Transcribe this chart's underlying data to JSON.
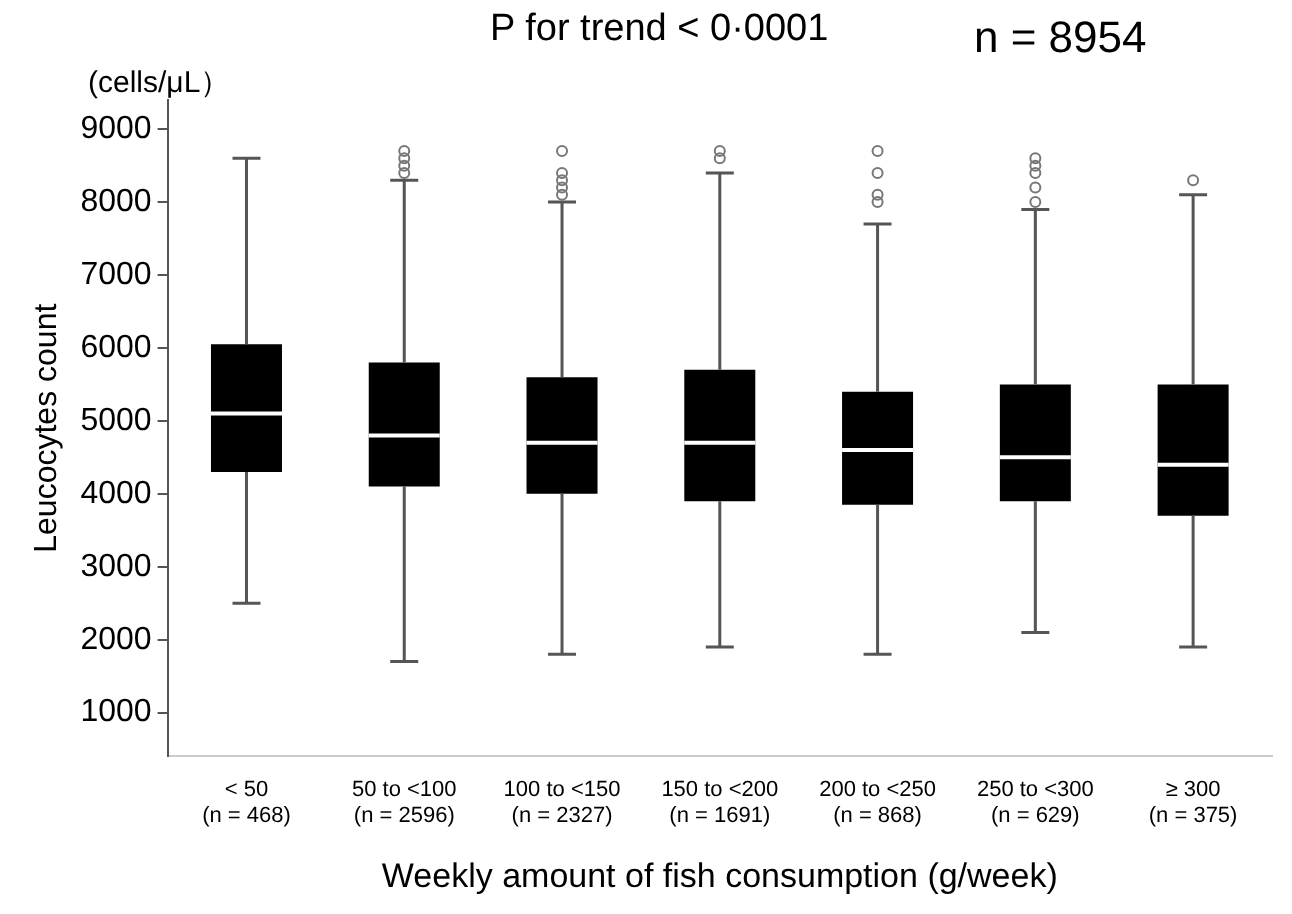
{
  "chart_data": {
    "type": "box",
    "categories": [
      "< 50\n(n = 468)",
      "50 to <100\n(n = 2596)",
      "100 to <150\n(n = 2327)",
      "150 to <200\n(n = 1691)",
      "200 to <250\n(n = 868)",
      "250 to <300\n(n = 629)",
      "≥ 300\n(n = 375)"
    ],
    "boxes": [
      {
        "low": 2500,
        "q1": 4300,
        "median": 5100,
        "q3": 6050,
        "high": 8600
      },
      {
        "low": 1700,
        "q1": 4100,
        "median": 4800,
        "q3": 5800,
        "high": 8300,
        "outliers": [
          8400,
          8500,
          8600,
          8700
        ]
      },
      {
        "low": 1800,
        "q1": 4000,
        "median": 4700,
        "q3": 5600,
        "high": 8000,
        "outliers": [
          8100,
          8200,
          8300,
          8400,
          8700
        ]
      },
      {
        "low": 1900,
        "q1": 3900,
        "median": 4700,
        "q3": 5700,
        "high": 8400,
        "outliers": [
          8600,
          8700
        ]
      },
      {
        "low": 1800,
        "q1": 3850,
        "median": 4600,
        "q3": 5400,
        "high": 7700,
        "outliers": [
          8000,
          8100,
          8400,
          8700
        ]
      },
      {
        "low": 2100,
        "q1": 3900,
        "median": 4500,
        "q3": 5500,
        "high": 7900,
        "outliers": [
          8000,
          8200,
          8400,
          8500,
          8600
        ]
      },
      {
        "low": 1900,
        "q1": 3700,
        "median": 4400,
        "q3": 5500,
        "high": 8100,
        "outliers": [
          8300
        ]
      }
    ],
    "color": "#000000",
    "xlabel": "Weekly amount of fish consumption (g/week)",
    "ylabel": "Leucocytes count",
    "ylim": [
      400,
      9400
    ],
    "yticks": [
      1000,
      2000,
      3000,
      4000,
      5000,
      6000,
      7000,
      8000,
      9000
    ],
    "grid": false,
    "legend": false,
    "annotations": [
      "P for trend < 0·0001",
      "n = 8954",
      "(cells/μL）"
    ]
  }
}
